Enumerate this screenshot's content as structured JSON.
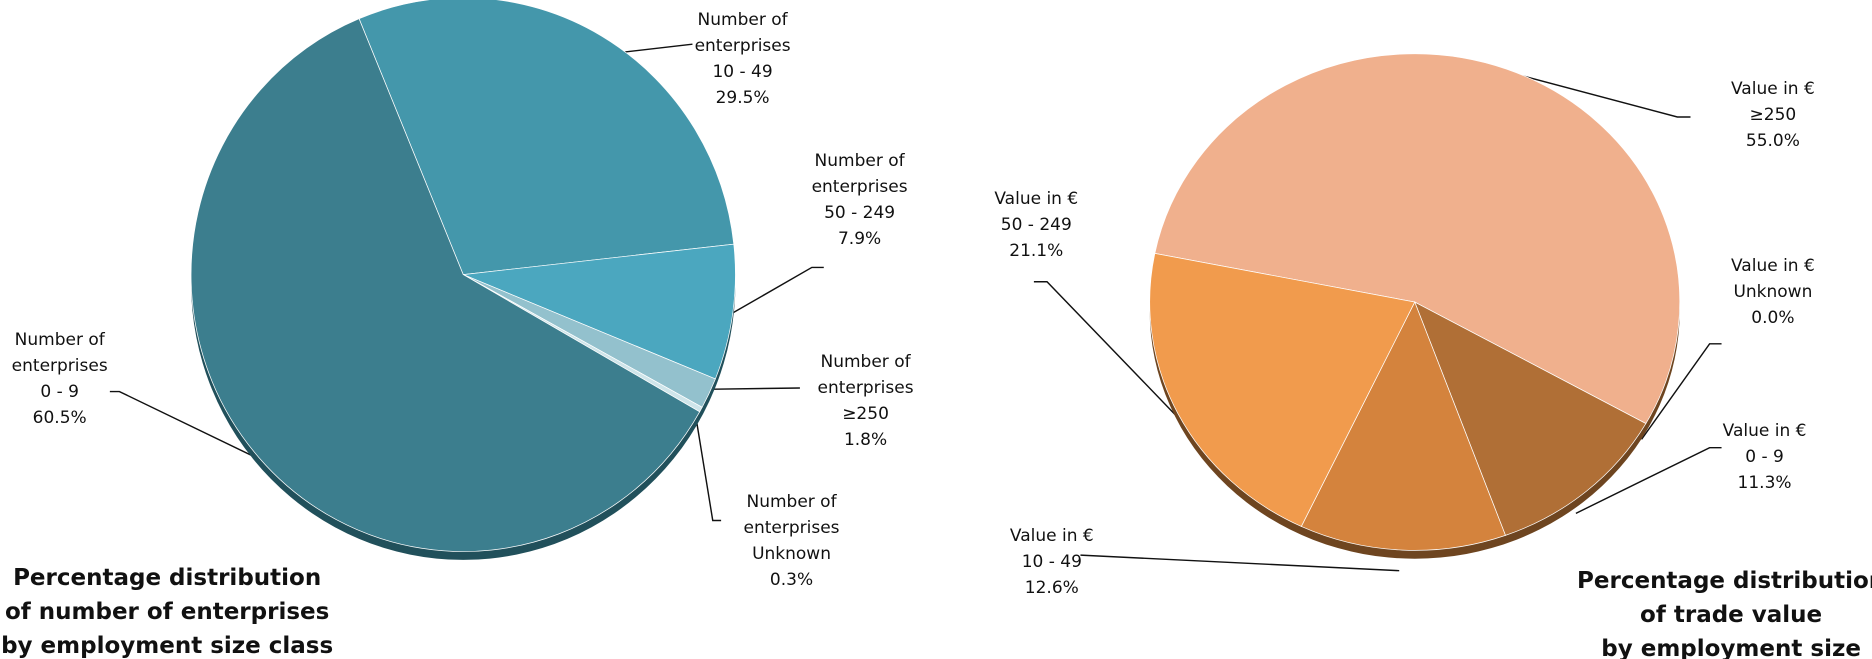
{
  "chart_data": [
    {
      "type": "pie",
      "title": "Percentage distribution\nof number of enterprises\nby employment size class",
      "series": [
        {
          "name": "Number of enterprises",
          "categories": [
            "10 - 49",
            "50 - 249",
            "≥250",
            "Unknown",
            "0 - 9"
          ],
          "values": [
            29.5,
            7.9,
            1.8,
            0.3,
            60.5
          ],
          "value_labels": [
            "29.5%",
            "7.9%",
            "1.8%",
            "0.3%",
            "60.5%"
          ],
          "colors": [
            "#4497ab",
            "#4ba7bf",
            "#93c1cd",
            "#cfe5ea",
            "#3c7e8e"
          ]
        }
      ]
    },
    {
      "type": "pie",
      "title": "Percentage distribution\nof trade value\nby employment size",
      "series": [
        {
          "name": "Value in €",
          "categories": [
            "≥250",
            "Unknown",
            "0 - 9",
            "10 - 49",
            "50 - 249"
          ],
          "values": [
            55.0,
            0.0,
            11.3,
            12.6,
            21.1
          ],
          "value_labels": [
            "55.0%",
            "0.0%",
            "11.3%",
            "12.6%",
            "21.1%"
          ],
          "colors": [
            "#f0b08d",
            "#e9a070",
            "#b06f36",
            "#d4833d",
            "#f19b4d"
          ]
        }
      ]
    }
  ]
}
